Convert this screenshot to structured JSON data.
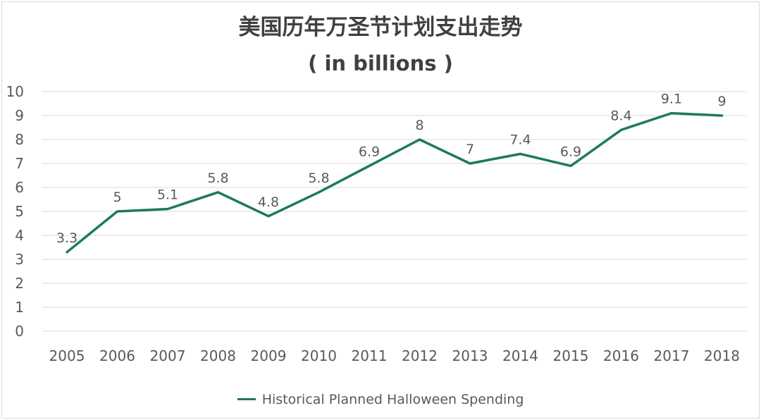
{
  "chart_data": {
    "type": "line",
    "title": "美国历年万圣节计划支出走势",
    "subtitle": "( in billions )",
    "x": [
      "2005",
      "2006",
      "2007",
      "2008",
      "2009",
      "2010",
      "2011",
      "2012",
      "2013",
      "2014",
      "2015",
      "2016",
      "2017",
      "2018"
    ],
    "y_ticks": [
      "0",
      "1",
      "2",
      "3",
      "4",
      "5",
      "6",
      "7",
      "8",
      "9",
      "10"
    ],
    "ylim": [
      0,
      10
    ],
    "grid": true,
    "legend_position": "bottom",
    "series": [
      {
        "name": "Historical Planned Halloween Spending",
        "values": [
          3.3,
          5,
          5.1,
          5.8,
          4.8,
          5.8,
          6.9,
          8,
          7,
          7.4,
          6.9,
          8.4,
          9.1,
          9
        ],
        "labels": [
          "3.3",
          "5",
          "5.1",
          "5.8",
          "4.8",
          "5.8",
          "6.9",
          "8",
          "7",
          "7.4",
          "6.9",
          "8.4",
          "9.1",
          "9"
        ],
        "color": "#1e7a5c"
      }
    ],
    "colors": {
      "grid": "#d9d9d9",
      "axis_text": "#595959",
      "title_text": "#404040"
    }
  }
}
